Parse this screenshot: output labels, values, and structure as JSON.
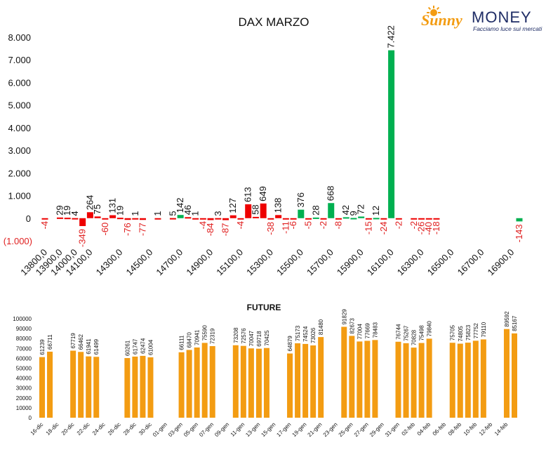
{
  "logo": {
    "brand_part1": "Sunny",
    "brand_part2": "MONEY",
    "tagline": "Facciamo luce sui mercati"
  },
  "colors": {
    "positive": "#00b050",
    "negative": "#ee0000",
    "future": "#f39c12",
    "negative_label": "#e02020",
    "brand_orange": "#f39c12",
    "brand_navy": "#1f2d66"
  },
  "chart_data": [
    {
      "type": "bar",
      "title": "DAX MARZO",
      "y_ticks": [
        "8.000",
        "7.000",
        "6.000",
        "5.000",
        "4.000",
        "3.000",
        "2.000",
        "1.000",
        "0",
        "(1.000)"
      ],
      "ylim": [
        -1000,
        8000
      ],
      "grid": false,
      "x_tick_labels": [
        "13800,0",
        "13900,0",
        "14000,0",
        "14100,0",
        "14300,0",
        "14500,0",
        "14700,0",
        "14900,0",
        "15100,0",
        "15300,0",
        "15500,0",
        "15700,0",
        "15900,0",
        "16100,0",
        "16300,0",
        "16500,0",
        "16700,0",
        "16900,0"
      ],
      "bars": [
        {
          "x": 13800,
          "value": -4,
          "label": "-4"
        },
        {
          "x": 13900,
          "value": 29,
          "label": "29"
        },
        {
          "x": 13950,
          "value": 19,
          "label": "19"
        },
        {
          "x": 14000,
          "value": 4,
          "label": "4"
        },
        {
          "x": 14050,
          "value": -349,
          "label": "-349"
        },
        {
          "x": 14100,
          "value": 264,
          "label": "264"
        },
        {
          "x": 14150,
          "value": 75,
          "label": "75"
        },
        {
          "x": 14200,
          "value": -60,
          "label": "-60"
        },
        {
          "x": 14250,
          "value": 131,
          "label": "131"
        },
        {
          "x": 14300,
          "value": 19,
          "label": "19"
        },
        {
          "x": 14350,
          "value": -76,
          "label": "-76"
        },
        {
          "x": 14400,
          "value": 1,
          "label": "1"
        },
        {
          "x": 14450,
          "value": -77,
          "label": "-77"
        },
        {
          "x": 14550,
          "value": 1,
          "label": "1"
        },
        {
          "x": 14650,
          "value": 5,
          "label": "5"
        },
        {
          "x": 14700,
          "value": 142,
          "label": "142"
        },
        {
          "x": 14750,
          "value": 46,
          "label": "46"
        },
        {
          "x": 14800,
          "value": 1,
          "label": "1"
        },
        {
          "x": 14850,
          "value": -4,
          "label": "-4"
        },
        {
          "x": 14900,
          "value": -84,
          "label": "-84"
        },
        {
          "x": 14950,
          "value": 3,
          "label": "3"
        },
        {
          "x": 15000,
          "value": -87,
          "label": "-87"
        },
        {
          "x": 15050,
          "value": 127,
          "label": "127"
        },
        {
          "x": 15100,
          "value": -4,
          "label": "-4"
        },
        {
          "x": 15150,
          "value": 613,
          "label": "613"
        },
        {
          "x": 15200,
          "value": 58,
          "label": "58"
        },
        {
          "x": 15250,
          "value": 649,
          "label": "649"
        },
        {
          "x": 15300,
          "value": -38,
          "label": "-38"
        },
        {
          "x": 15350,
          "value": 138,
          "label": "138"
        },
        {
          "x": 15400,
          "value": -11,
          "label": "-11"
        },
        {
          "x": 15450,
          "value": -6,
          "label": "-6"
        },
        {
          "x": 15500,
          "value": 376,
          "label": "376"
        },
        {
          "x": 15550,
          "value": -5,
          "label": "-5"
        },
        {
          "x": 15600,
          "value": 28,
          "label": "28"
        },
        {
          "x": 15650,
          "value": -2,
          "label": "-2"
        },
        {
          "x": 15700,
          "value": 668,
          "label": "668"
        },
        {
          "x": 15750,
          "value": -8,
          "label": "-8"
        },
        {
          "x": 15800,
          "value": 42,
          "label": "42"
        },
        {
          "x": 15850,
          "value": 9,
          "label": "9"
        },
        {
          "x": 15900,
          "value": 72,
          "label": "72"
        },
        {
          "x": 15950,
          "value": -15,
          "label": "-15"
        },
        {
          "x": 16000,
          "value": 12,
          "label": "12"
        },
        {
          "x": 16050,
          "value": -24,
          "label": "-24"
        },
        {
          "x": 16100,
          "value": 7422,
          "label": "7.422"
        },
        {
          "x": 16150,
          "value": -2,
          "label": "-2"
        },
        {
          "x": 16250,
          "value": -2,
          "label": "-2"
        },
        {
          "x": 16300,
          "value": -26,
          "label": "-26"
        },
        {
          "x": 16350,
          "value": -40,
          "label": "-40"
        },
        {
          "x": 16400,
          "value": -18,
          "label": "-18"
        },
        {
          "x": 16950,
          "value": -143,
          "label": "-143"
        }
      ]
    },
    {
      "type": "bar",
      "title": "FUTURE",
      "y_ticks": [
        "100000",
        "90000",
        "80000",
        "70000",
        "60000",
        "50000",
        "40000",
        "30000",
        "20000",
        "10000",
        "0"
      ],
      "ylim": [
        0,
        100000
      ],
      "grid": false,
      "x_tick_labels": [
        "16-dic",
        "18-dic",
        "20-dic",
        "22-dic",
        "24-dic",
        "26-dic",
        "28-dic",
        "30-dic",
        "01-gen",
        "03-gen",
        "05-gen",
        "07-gen",
        "09-gen",
        "11-gen",
        "13-gen",
        "15-gen",
        "17-gen",
        "19-gen",
        "21-gen",
        "23-gen",
        "25-gen",
        "27-gen",
        "29-gen",
        "31-gen",
        "02-feb",
        "04-feb",
        "06-feb",
        "08-feb",
        "10-feb",
        "12-feb",
        "14-feb"
      ],
      "bars": [
        {
          "date": "16-dic",
          "value": 61239
        },
        {
          "date": "17-dic",
          "value": 66711
        },
        {
          "date": "20-dic",
          "value": 67719
        },
        {
          "date": "21-dic",
          "value": 66462
        },
        {
          "date": "22-dic",
          "value": 61941
        },
        {
          "date": "23-dic",
          "value": 61499
        },
        {
          "date": "27-dic",
          "value": 60261
        },
        {
          "date": "28-dic",
          "value": 61747
        },
        {
          "date": "29-dic",
          "value": 62474
        },
        {
          "date": "30-dic",
          "value": 61004
        },
        {
          "date": "03-gen",
          "value": 66111
        },
        {
          "date": "04-gen",
          "value": 68470
        },
        {
          "date": "05-gen",
          "value": 70941
        },
        {
          "date": "06-gen",
          "value": 75590
        },
        {
          "date": "07-gen",
          "value": 72319
        },
        {
          "date": "10-gen",
          "value": 73208
        },
        {
          "date": "11-gen",
          "value": 72576
        },
        {
          "date": "12-gen",
          "value": 70047
        },
        {
          "date": "13-gen",
          "value": 69718
        },
        {
          "date": "14-gen",
          "value": 70425
        },
        {
          "date": "17-gen",
          "value": 64879
        },
        {
          "date": "18-gen",
          "value": 75173
        },
        {
          "date": "19-gen",
          "value": 74524
        },
        {
          "date": "20-gen",
          "value": 73026
        },
        {
          "date": "21-gen",
          "value": 81480
        },
        {
          "date": "24-gen",
          "value": 91829
        },
        {
          "date": "25-gen",
          "value": 82673
        },
        {
          "date": "26-gen",
          "value": 77004
        },
        {
          "date": "27-gen",
          "value": 77669
        },
        {
          "date": "28-gen",
          "value": 78483
        },
        {
          "date": "31-gen",
          "value": 76744
        },
        {
          "date": "01-feb",
          "value": 75267
        },
        {
          "date": "02-feb",
          "value": 70828
        },
        {
          "date": "03-feb",
          "value": 75498
        },
        {
          "date": "04-feb",
          "value": 79840
        },
        {
          "date": "07-feb",
          "value": 75705
        },
        {
          "date": "08-feb",
          "value": 74805
        },
        {
          "date": "09-feb",
          "value": 75823
        },
        {
          "date": "10-feb",
          "value": 77752
        },
        {
          "date": "11-feb",
          "value": 79110
        },
        {
          "date": "14-feb",
          "value": 89592
        },
        {
          "date": "15-feb",
          "value": 85167
        }
      ]
    }
  ]
}
